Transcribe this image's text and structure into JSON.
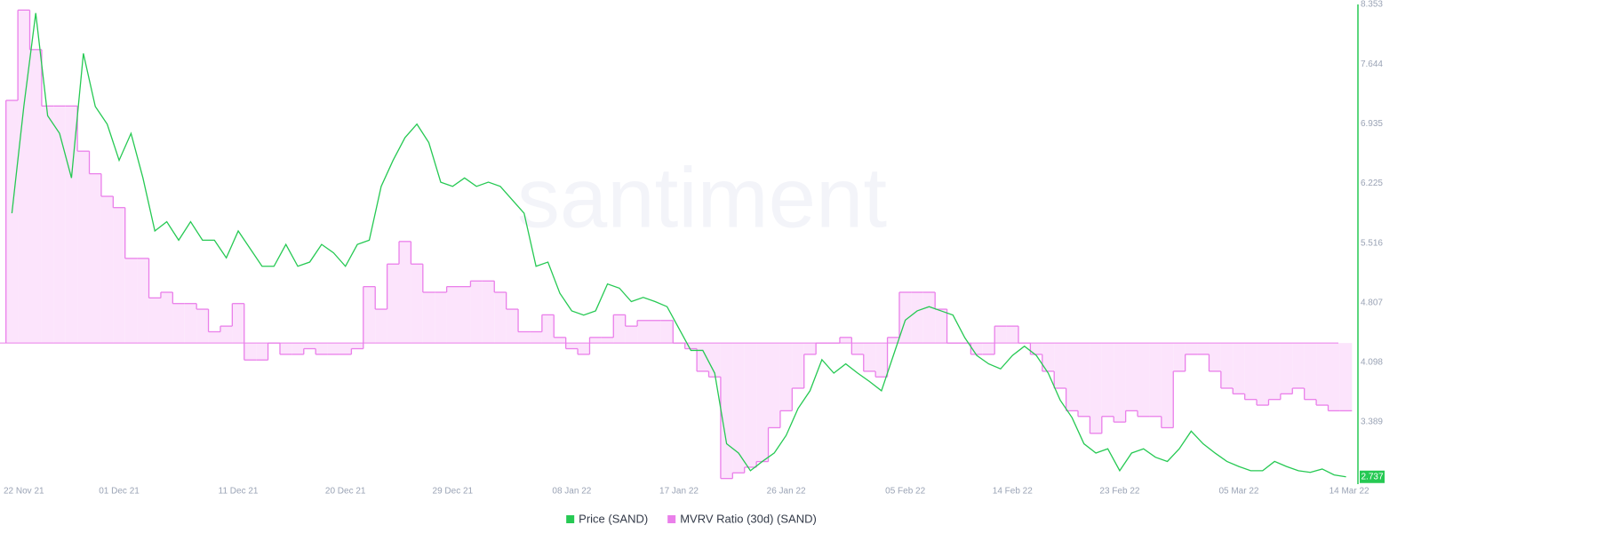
{
  "chart_data": {
    "type": "line",
    "watermark": "santiment",
    "x": [
      "2021-11-22",
      "2021-11-23",
      "2021-11-24",
      "2021-11-25",
      "2021-11-26",
      "2021-11-27",
      "2021-11-28",
      "2021-11-29",
      "2021-11-30",
      "2021-12-01",
      "2021-12-02",
      "2021-12-03",
      "2021-12-04",
      "2021-12-05",
      "2021-12-06",
      "2021-12-07",
      "2021-12-08",
      "2021-12-09",
      "2021-12-10",
      "2021-12-11",
      "2021-12-12",
      "2021-12-13",
      "2021-12-14",
      "2021-12-15",
      "2021-12-16",
      "2021-12-17",
      "2021-12-18",
      "2021-12-19",
      "2021-12-20",
      "2021-12-21",
      "2021-12-22",
      "2021-12-23",
      "2021-12-24",
      "2021-12-25",
      "2021-12-26",
      "2021-12-27",
      "2021-12-28",
      "2021-12-29",
      "2021-12-30",
      "2021-12-31",
      "2022-01-01",
      "2022-01-02",
      "2022-01-03",
      "2022-01-04",
      "2022-01-05",
      "2022-01-06",
      "2022-01-07",
      "2022-01-08",
      "2022-01-09",
      "2022-01-10",
      "2022-01-11",
      "2022-01-12",
      "2022-01-13",
      "2022-01-14",
      "2022-01-15",
      "2022-01-16",
      "2022-01-17",
      "2022-01-18",
      "2022-01-19",
      "2022-01-20",
      "2022-01-21",
      "2022-01-22",
      "2022-01-23",
      "2022-01-24",
      "2022-01-25",
      "2022-01-26",
      "2022-01-27",
      "2022-01-28",
      "2022-01-29",
      "2022-01-30",
      "2022-01-31",
      "2022-02-01",
      "2022-02-02",
      "2022-02-03",
      "2022-02-04",
      "2022-02-05",
      "2022-02-06",
      "2022-02-07",
      "2022-02-08",
      "2022-02-09",
      "2022-02-10",
      "2022-02-11",
      "2022-02-12",
      "2022-02-13",
      "2022-02-14",
      "2022-02-15",
      "2022-02-16",
      "2022-02-17",
      "2022-02-18",
      "2022-02-19",
      "2022-02-20",
      "2022-02-21",
      "2022-02-22",
      "2022-02-23",
      "2022-02-24",
      "2022-02-25",
      "2022-02-26",
      "2022-02-27",
      "2022-02-28",
      "2022-03-01",
      "2022-03-02",
      "2022-03-03",
      "2022-03-04",
      "2022-03-05",
      "2022-03-06",
      "2022-03-07",
      "2022-03-08",
      "2022-03-09",
      "2022-03-10",
      "2022-03-11",
      "2022-03-12",
      "2022-03-13",
      "2022-03-14"
    ],
    "xlim": [
      "2021-11-21",
      "2022-03-15"
    ],
    "xticks": [
      {
        "value": "2021-11-22",
        "label": "22 Nov 21"
      },
      {
        "value": "2021-12-01",
        "label": "01 Dec 21"
      },
      {
        "value": "2021-12-11",
        "label": "11 Dec 21"
      },
      {
        "value": "2021-12-20",
        "label": "20 Dec 21"
      },
      {
        "value": "2021-12-29",
        "label": "29 Dec 21"
      },
      {
        "value": "2022-01-08",
        "label": "08 Jan 22"
      },
      {
        "value": "2022-01-17",
        "label": "17 Jan 22"
      },
      {
        "value": "2022-01-26",
        "label": "26 Jan 22"
      },
      {
        "value": "2022-02-05",
        "label": "05 Feb 22"
      },
      {
        "value": "2022-02-14",
        "label": "14 Feb 22"
      },
      {
        "value": "2022-02-23",
        "label": "23 Feb 22"
      },
      {
        "value": "2022-03-05",
        "label": "05 Mar 22"
      },
      {
        "value": "2022-03-14",
        "label": "14 Mar 22"
      }
    ],
    "ylim": [
      2.65,
      8.353
    ],
    "yticks": [
      3.389,
      4.098,
      4.807,
      5.516,
      6.225,
      6.935,
      7.644,
      8.353
    ],
    "y2lim": [
      0.75,
      1.6
    ],
    "series": [
      {
        "name": "Price (SAND)",
        "color": "#26c953",
        "values": [
          5.87,
          7.14,
          8.25,
          7.03,
          6.82,
          6.29,
          7.77,
          7.14,
          6.93,
          6.5,
          6.82,
          6.29,
          5.66,
          5.77,
          5.55,
          5.77,
          5.55,
          5.55,
          5.34,
          5.66,
          5.45,
          5.24,
          5.24,
          5.5,
          5.24,
          5.29,
          5.5,
          5.4,
          5.24,
          5.5,
          5.55,
          6.19,
          6.5,
          6.77,
          6.93,
          6.71,
          6.24,
          6.19,
          6.29,
          6.19,
          6.24,
          6.19,
          6.03,
          5.87,
          5.24,
          5.29,
          4.92,
          4.71,
          4.66,
          4.71,
          5.03,
          4.98,
          4.82,
          4.87,
          4.82,
          4.76,
          4.5,
          4.24,
          4.24,
          3.97,
          3.13,
          3.02,
          2.81,
          2.92,
          3.02,
          3.23,
          3.55,
          3.76,
          4.13,
          3.97,
          4.08,
          3.97,
          3.87,
          3.76,
          4.18,
          4.6,
          4.71,
          4.76,
          4.71,
          4.66,
          4.39,
          4.18,
          4.08,
          4.02,
          4.18,
          4.29,
          4.18,
          3.97,
          3.65,
          3.44,
          3.13,
          3.02,
          3.07,
          2.81,
          3.02,
          3.07,
          2.97,
          2.92,
          3.07,
          3.28,
          3.13,
          3.02,
          2.92,
          2.86,
          2.81,
          2.81,
          2.92,
          2.86,
          2.81,
          2.79,
          2.83,
          2.76,
          2.737
        ]
      },
      {
        "name": "MVRV Ratio (30d) (SAND)",
        "color": "#ea7fea",
        "fill": "#fce4fc",
        "axis": "y2",
        "baseline": 1,
        "values": [
          1.43,
          1.59,
          1.52,
          1.42,
          1.42,
          1.42,
          1.34,
          1.3,
          1.26,
          1.24,
          1.15,
          1.15,
          1.08,
          1.09,
          1.07,
          1.07,
          1.06,
          1.02,
          1.03,
          1.07,
          0.97,
          0.97,
          1.0,
          0.98,
          0.98,
          0.99,
          0.98,
          0.98,
          0.98,
          0.99,
          1.1,
          1.06,
          1.14,
          1.18,
          1.14,
          1.09,
          1.09,
          1.1,
          1.1,
          1.11,
          1.11,
          1.09,
          1.06,
          1.02,
          1.02,
          1.05,
          1.01,
          0.99,
          0.98,
          1.01,
          1.01,
          1.05,
          1.03,
          1.04,
          1.04,
          1.04,
          1.0,
          0.99,
          0.95,
          0.94,
          0.76,
          0.77,
          0.78,
          0.79,
          0.85,
          0.88,
          0.92,
          0.98,
          1.0,
          1.0,
          1.01,
          0.98,
          0.95,
          0.94,
          1.01,
          1.09,
          1.09,
          1.09,
          1.06,
          1.0,
          1.0,
          0.98,
          0.98,
          1.03,
          1.03,
          1.0,
          0.98,
          0.95,
          0.92,
          0.88,
          0.87,
          0.84,
          0.87,
          0.86,
          0.88,
          0.87,
          0.87,
          0.85,
          0.95,
          0.98,
          0.98,
          0.95,
          0.92,
          0.91,
          0.9,
          0.89,
          0.9,
          0.91,
          0.92,
          0.9,
          0.89,
          0.88,
          0.88
        ]
      }
    ]
  }
}
